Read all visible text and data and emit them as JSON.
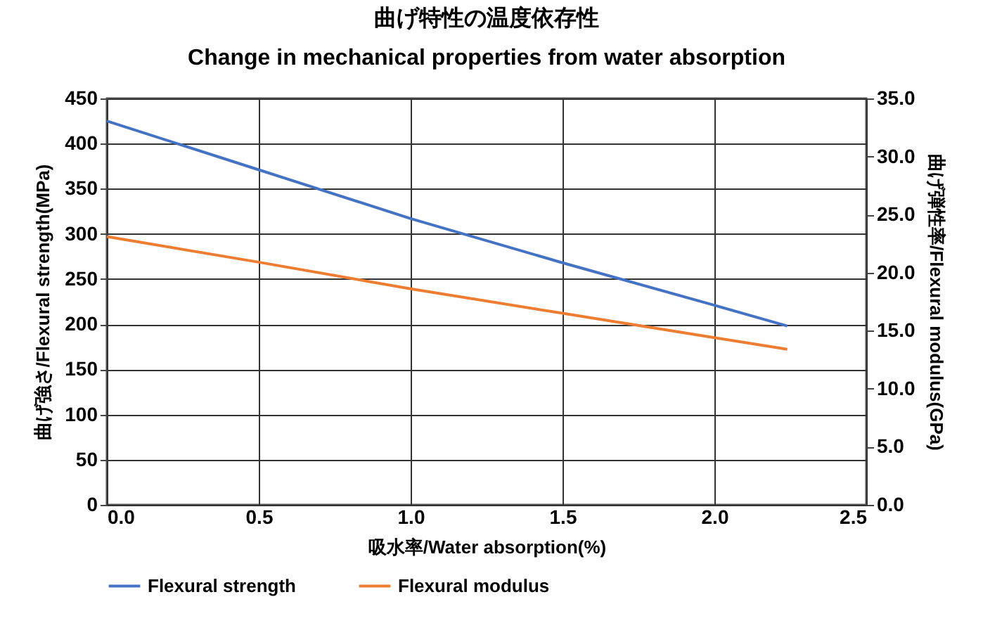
{
  "chart_data": {
    "type": "line",
    "title": "曲げ特性の温度依存性",
    "subtitle": "Change in mechanical properties from water absorption",
    "xlabel": "吸水率/Water absorption(%)",
    "ylabel": "曲げ強さ/Flexural strength(MPa)",
    "y2label": "曲げ弾性率/Flexural modulus(GPa)",
    "x": [
      0,
      0.5,
      1.0,
      1.5,
      2.0,
      2.24
    ],
    "series": [
      {
        "name": "Flexural strength",
        "color": "#4472c4",
        "values": [
          425,
          371,
          317,
          268,
          221,
          198
        ]
      },
      {
        "name": "Flexural modulus",
        "color": "#ed7d31",
        "axis": "y2",
        "values": [
          23.1,
          20.9,
          18.6,
          16.5,
          14.4,
          13.4
        ]
      }
    ],
    "xlim": [
      0,
      2.5
    ],
    "xticks": [
      {
        "value": 0,
        "label": "0.0"
      },
      0.5,
      {
        "value": 1,
        "label": "1.0"
      },
      1.5,
      {
        "value": 2,
        "label": "2.0"
      },
      2.5
    ],
    "ylim": [
      0,
      450
    ],
    "yticks": [
      0,
      50,
      100,
      150,
      200,
      250,
      300,
      350,
      400,
      450
    ],
    "y2lim": [
      0,
      35
    ],
    "y2ticks": [
      {
        "value": 0,
        "label": "0.0"
      },
      {
        "value": 5,
        "label": "5.0"
      },
      {
        "value": 10,
        "label": "10.0"
      },
      {
        "value": 15,
        "label": "15.0"
      },
      {
        "value": 20,
        "label": "20.0"
      },
      {
        "value": 25,
        "label": "25.0"
      },
      {
        "value": 30,
        "label": "30.0"
      },
      {
        "value": 35,
        "label": "35.0"
      }
    ],
    "grid": true,
    "legend": "bottom",
    "marker": "none",
    "line_style": "solid"
  }
}
